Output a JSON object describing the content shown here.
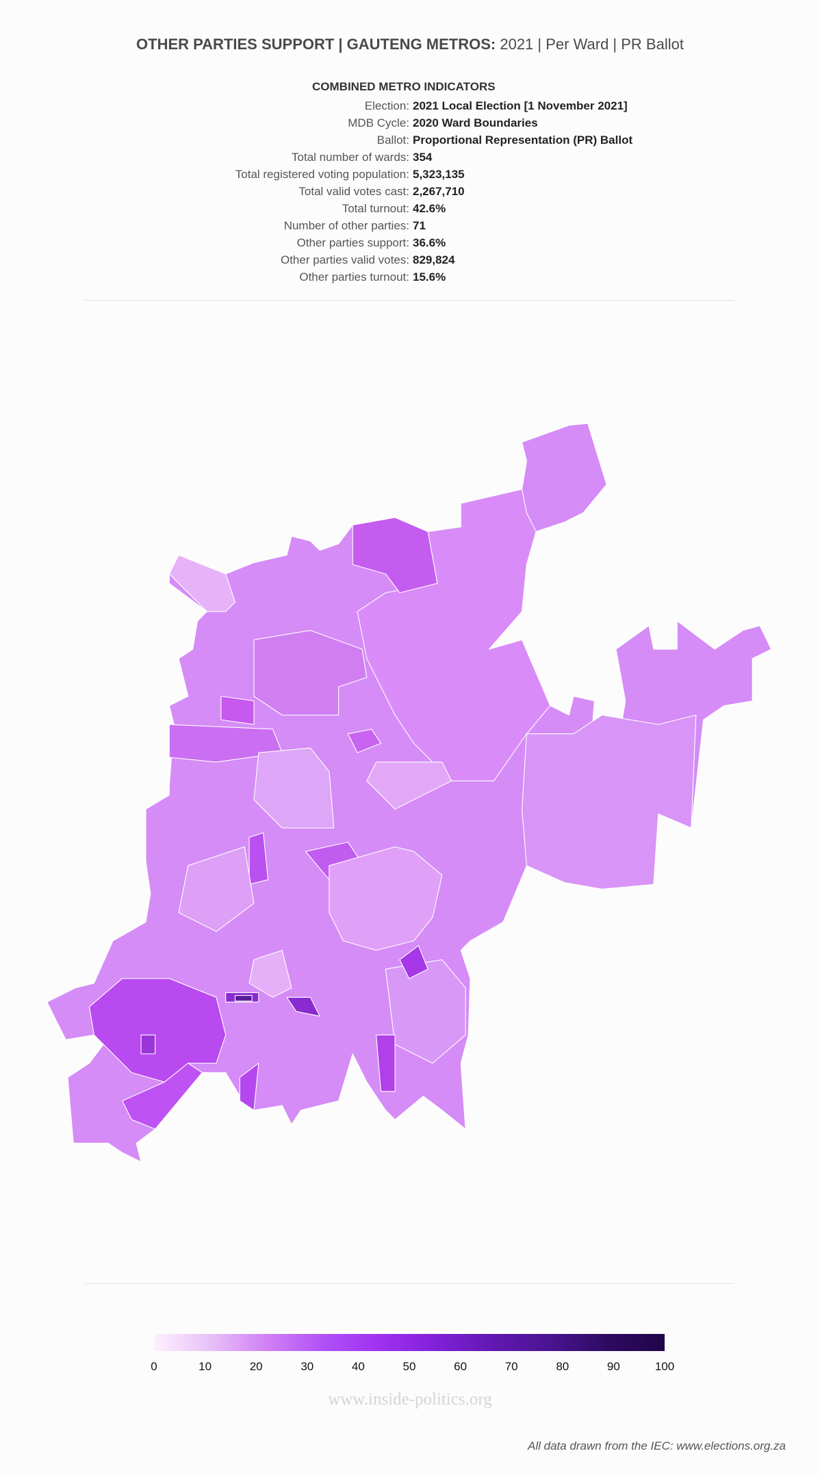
{
  "header": {
    "title_bold": "OTHER PARTIES SUPPORT | GAUTENG METROS:",
    "title_rest": " 2021 | Per Ward | PR Ballot"
  },
  "indicators": {
    "heading": "COMBINED METRO INDICATORS",
    "rows": [
      {
        "label": "Election:",
        "value": "2021 Local Election [1 November 2021]"
      },
      {
        "label": "MDB Cycle:",
        "value": "2020 Ward Boundaries"
      },
      {
        "label": "Ballot:",
        "value": "Proportional Representation (PR) Ballot"
      },
      {
        "label": "Total number of wards:",
        "value": "354"
      },
      {
        "label": "Total registered voting population:",
        "value": "5,323,135"
      },
      {
        "label": "Total valid votes cast:",
        "value": "2,267,710"
      },
      {
        "label": "Total turnout:",
        "value": "42.6%"
      },
      {
        "label": "Number of other parties:",
        "value": "71"
      },
      {
        "label": "Other parties support:",
        "value": "36.6%"
      },
      {
        "label": "Other parties valid votes:",
        "value": "829,824"
      },
      {
        "label": "Other parties turnout:",
        "value": "15.6%"
      }
    ]
  },
  "map": {
    "region": "Gauteng metros",
    "measure": "Other parties support (%) per ward",
    "color_scale": {
      "min": 0,
      "max": 100,
      "ticks": [
        "0",
        "10",
        "20",
        "30",
        "40",
        "50",
        "60",
        "70",
        "80",
        "90",
        "100"
      ],
      "colors": [
        "#fef0fe",
        "#e8c0f8",
        "#d080f5",
        "#b050f8",
        "#a030f0",
        "#8020d8",
        "#6018b0",
        "#481490",
        "#2e0a60",
        "#200548"
      ]
    }
  },
  "watermark": "www.inside-politics.org",
  "footer": "All data drawn from the IEC: www.elections.org.za"
}
